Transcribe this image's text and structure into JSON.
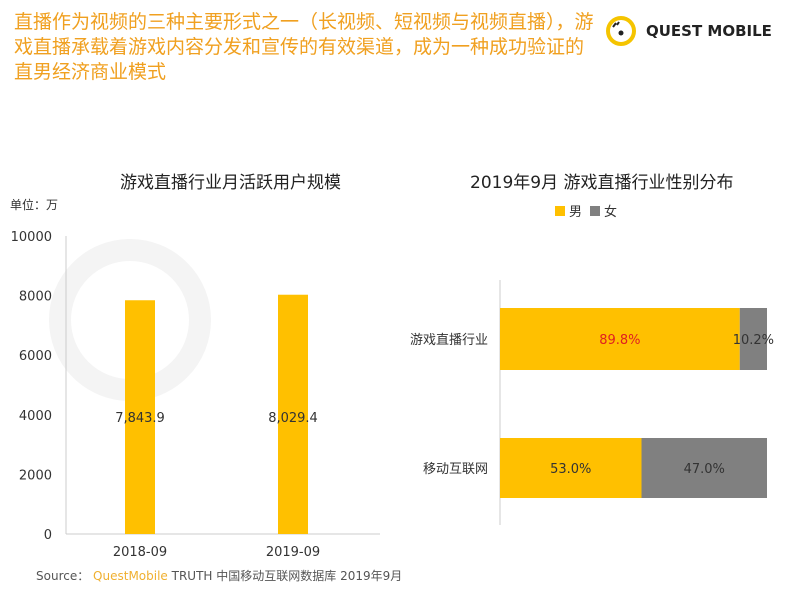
{
  "headline": "直播作为视频的三种主要形式之一（长视频、短视频与视频直播），游戏直播承载着游戏内容分发和宣传的有效渠道，成为一种成功验证的直男经济商业模式",
  "logo": {
    "text": "QUEST MOBILE"
  },
  "watermark": "QUEST",
  "colors": {
    "accent": "#f0a020",
    "bar_yellow": "#ffc000",
    "bar_gray": "#808080",
    "red_label": "#e02020"
  },
  "source": {
    "label": "Source：",
    "brand": "QuestMobile",
    "text": "TRUTH 中国移动互联网数据库 2019年9月"
  },
  "chart_data": [
    {
      "type": "bar",
      "title": "游戏直播行业月活跃用户规模",
      "unit_label": "单位：万",
      "categories": [
        "2018-09",
        "2019-09"
      ],
      "values": [
        7843.9,
        8029.4
      ],
      "value_labels": [
        "7,843.9",
        "8,029.4"
      ],
      "ylim": [
        0,
        10000
      ],
      "yticks": [
        "0",
        "2000",
        "4000",
        "6000",
        "8000",
        "10000"
      ]
    },
    {
      "type": "bar",
      "orientation": "horizontal-stacked-100",
      "title": "2019年9月 游戏直播行业性别分布",
      "legend": [
        "男",
        "女"
      ],
      "legend_placement": "top",
      "categories": [
        "游戏直播行业",
        "移动互联网"
      ],
      "series": [
        {
          "name": "男",
          "values": [
            89.8,
            53.0
          ],
          "labels": [
            "89.8%",
            "53.0%"
          ]
        },
        {
          "name": "女",
          "values": [
            10.2,
            47.0
          ],
          "labels": [
            "10.2%",
            "47.0%"
          ]
        }
      ]
    }
  ]
}
